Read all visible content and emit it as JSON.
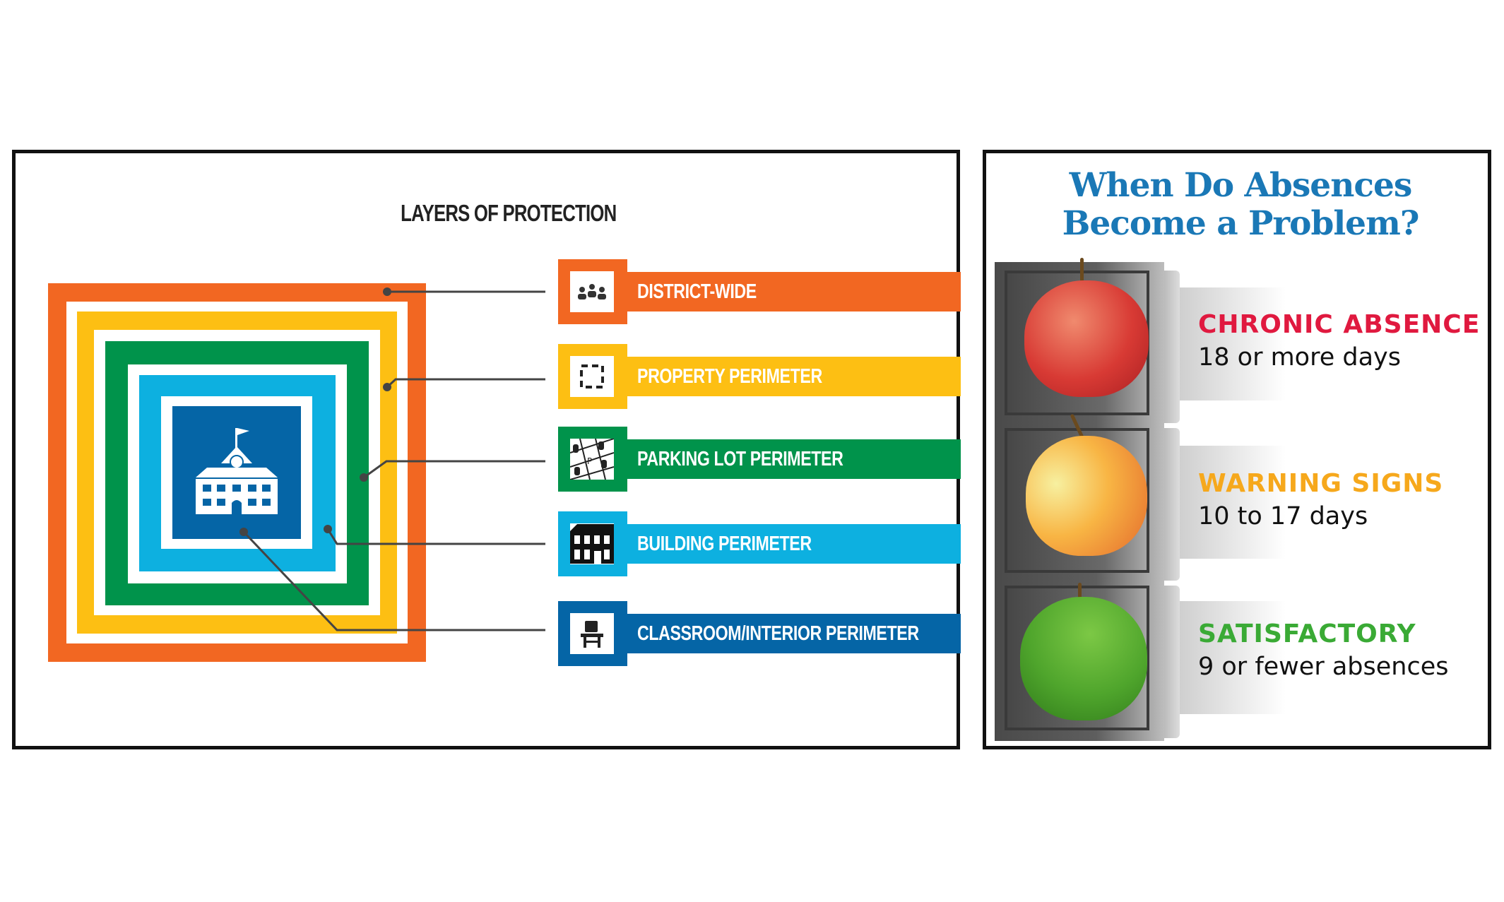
{
  "layers": {
    "title": "LAYERS OF PROTECTION",
    "center_icon": "school-building-icon",
    "items": [
      {
        "label": "DISTRICT-WIDE",
        "color": "#f26722",
        "icon": "people-group-icon"
      },
      {
        "label": "PROPERTY PERIMETER",
        "color": "#fdbf13",
        "icon": "dashed-square-icon"
      },
      {
        "label": "PARKING LOT PERIMETER",
        "color": "#00934b",
        "icon": "parking-lot-icon"
      },
      {
        "label": "BUILDING PERIMETER",
        "color": "#0db0e0",
        "icon": "building-icon"
      },
      {
        "label": "CLASSROOM/INTERIOR PERIMETER",
        "color": "#0565a6",
        "icon": "desk-chair-icon"
      }
    ]
  },
  "absences": {
    "title_line1": "When Do Absences",
    "title_line2": "Become a Problem?",
    "title_color": "#1a78b6",
    "levels": [
      {
        "heading": "CHRONIC ABSENCE",
        "detail": "18 or more days",
        "color": "#e0193f",
        "icon": "red-apple-icon"
      },
      {
        "heading": "WARNING SIGNS",
        "detail": "10 to 17 days",
        "color": "#f6a81c",
        "icon": "yellow-apple-icon"
      },
      {
        "heading": "SATISFACTORY",
        "detail": "9 or fewer absences",
        "color": "#3aaa35",
        "icon": "green-apple-icon"
      }
    ]
  }
}
